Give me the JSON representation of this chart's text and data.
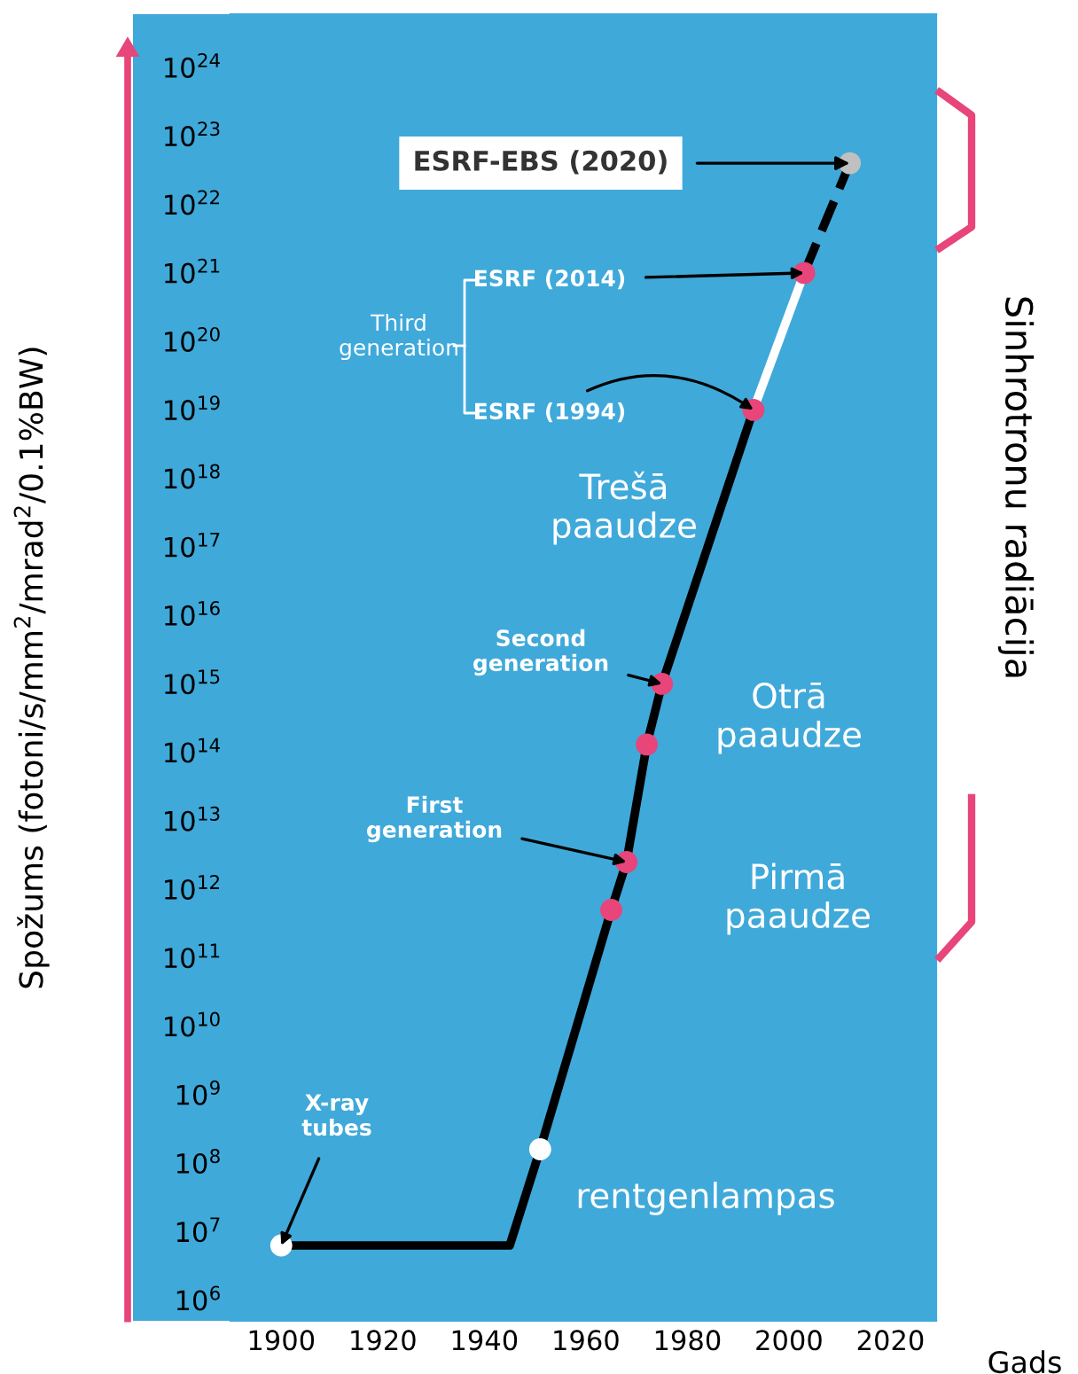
{
  "chart_data": {
    "type": "line",
    "xlabel": "Gads",
    "ylabel": "Spožums (fotoni/s/mm$^{2}$/mrad$^{2}$/0.1%BW)",
    "log": "y",
    "grid": false,
    "legend": false,
    "xlim": [
      1890,
      2029
    ],
    "xticks": [
      1900,
      1920,
      1940,
      1960,
      1980,
      2000,
      2020
    ],
    "ylim": [
      500000.0,
      6e+24
    ],
    "yticks": [
      {
        "value": 1000000.0,
        "label": "10$^{6}$"
      },
      {
        "value": 10000000.0,
        "label": "10$^{7}$"
      },
      {
        "value": 100000000.0,
        "label": "10$^{8}$"
      },
      {
        "value": 1000000000.0,
        "label": "10$^{9}$"
      },
      {
        "value": 10000000000.0,
        "label": "10$^{10}$"
      },
      {
        "value": 100000000000.0,
        "label": "10$^{11}$"
      },
      {
        "value": 1000000000000.0,
        "label": "10$^{12}$"
      },
      {
        "value": 10000000000000.0,
        "label": "10$^{13}$"
      },
      {
        "value": 100000000000000.0,
        "label": "10$^{14}$"
      },
      {
        "value": 1000000000000000.0,
        "label": "10$^{15}$"
      },
      {
        "value": 1e+16,
        "label": "10$^{16}$"
      },
      {
        "value": 1e+17,
        "label": "10$^{17}$"
      },
      {
        "value": 1e+18,
        "label": "10$^{18}$"
      },
      {
        "value": 1e+19,
        "label": "10$^{19}$"
      },
      {
        "value": 1e+20,
        "label": "10$^{20}$"
      },
      {
        "value": 1e+21,
        "label": "10$^{21}$"
      },
      {
        "value": 1e+22,
        "label": "10$^{22}$"
      },
      {
        "value": 1e+23,
        "label": "10$^{23}$"
      },
      {
        "value": 1e+24,
        "label": "10$^{24}$"
      }
    ],
    "series": [
      {
        "color": "#000000",
        "line_style": "solid",
        "x": [
          1900,
          1945,
          1951,
          1965,
          1968,
          1972,
          1975,
          1993
        ],
        "values": [
          6300000.0,
          6300000.0,
          160000000.0,
          500000000000.0,
          2500000000000.0,
          130000000000000.0,
          1000000000000000.0,
          1e+19
        ]
      },
      {
        "color": "#ffffff",
        "line_style": "solid",
        "x": [
          1993,
          2003
        ],
        "values": [
          1e+19,
          1e+21
        ]
      },
      {
        "color": "#000000",
        "line_style": "dashed",
        "x": [
          2003,
          2012
        ],
        "values": [
          1e+21,
          4e+22
        ]
      },
      {
        "type": "scatter",
        "marker": "circle",
        "x": [
          1900,
          1951,
          1965,
          1968,
          1972,
          1975,
          1993,
          2003,
          2012
        ],
        "values": [
          6300000.0,
          160000000.0,
          500000000000.0,
          2500000000000.0,
          130000000000000.0,
          1000000000000000.0,
          1e+19,
          1e+21,
          4e+22
        ],
        "colors": [
          "#ffffff",
          "#ffffff",
          "#e8457a",
          "#e8457a",
          "#e8457a",
          "#e8457a",
          "#e8457a",
          "#e8457a",
          "#c0c0c0"
        ]
      }
    ],
    "annotations": [
      {
        "text": "ESRF-EBS (2020)",
        "x": 2012,
        "y": 4e+22
      },
      {
        "text": "ESRF (2014)",
        "x": 2003,
        "y": 1e+21
      },
      {
        "text": "ESRF (1994)",
        "x": 1993,
        "y": 1e+19
      },
      "Third\ngeneration",
      {
        "text": "Second\ngeneration",
        "x": 1975,
        "y": 1000000000000000.0
      },
      {
        "text": "First\ngeneration",
        "x": 1968,
        "y": 2500000000000.0
      },
      {
        "text": "X-ray\ntubes",
        "x": 1900,
        "y": 6300000.0
      },
      "Trešā\npaaudze",
      "Otrā\npaaudze",
      "Pirmā\npaaudze",
      "rentgenlampas",
      "Sinhrotronu radiācija"
    ]
  }
}
